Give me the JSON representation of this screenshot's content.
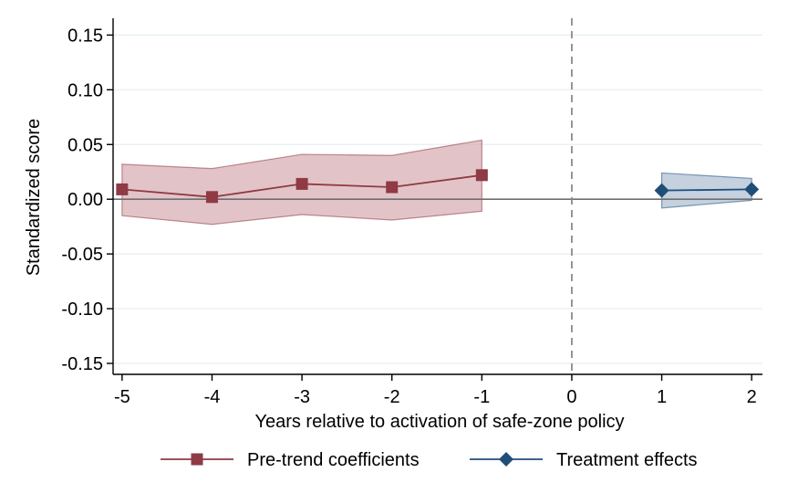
{
  "chart_data": {
    "type": "line",
    "title": "",
    "xlabel": "Years relative to activation of safe-zone policy",
    "ylabel": "Standardized score",
    "xlim": [
      -5.1,
      2.12
    ],
    "ylim": [
      -0.16,
      0.162
    ],
    "x_ticks": [
      -5,
      -4,
      -3,
      -2,
      -1,
      0,
      1,
      2
    ],
    "x_tick_labels": [
      "-5",
      "-4",
      "-3",
      "-2",
      "-1",
      "0",
      "1",
      "2"
    ],
    "y_ticks": [
      0.15,
      0.1,
      0.05,
      0.0,
      -0.05,
      -0.1,
      -0.15
    ],
    "y_tick_labels": [
      "0.15",
      "0.10",
      "0.05",
      "0.00",
      "-0.05",
      "-0.10",
      "-0.15"
    ],
    "grid": true,
    "reference_lines": {
      "horizontal": 0,
      "vertical": 0
    },
    "legend_position": "bottom",
    "series": [
      {
        "name": "Pre-trend coefficients",
        "marker": "square",
        "color": "#8f3a44",
        "fill": "#d8b0b5",
        "x": [
          -5,
          -4,
          -3,
          -2,
          -1
        ],
        "values": [
          0.009,
          0.002,
          0.014,
          0.011,
          0.022
        ],
        "ci_low": [
          -0.015,
          -0.023,
          -0.014,
          -0.019,
          -0.011
        ],
        "ci_high": [
          0.032,
          0.028,
          0.041,
          0.04,
          0.054
        ]
      },
      {
        "name": "Treatment effects",
        "marker": "diamond",
        "color": "#1f4e79",
        "fill": "#b2c2d4",
        "x": [
          1,
          2
        ],
        "values": [
          0.008,
          0.009
        ],
        "ci_low": [
          -0.008,
          -0.001
        ],
        "ci_high": [
          0.024,
          0.019
        ]
      }
    ]
  }
}
